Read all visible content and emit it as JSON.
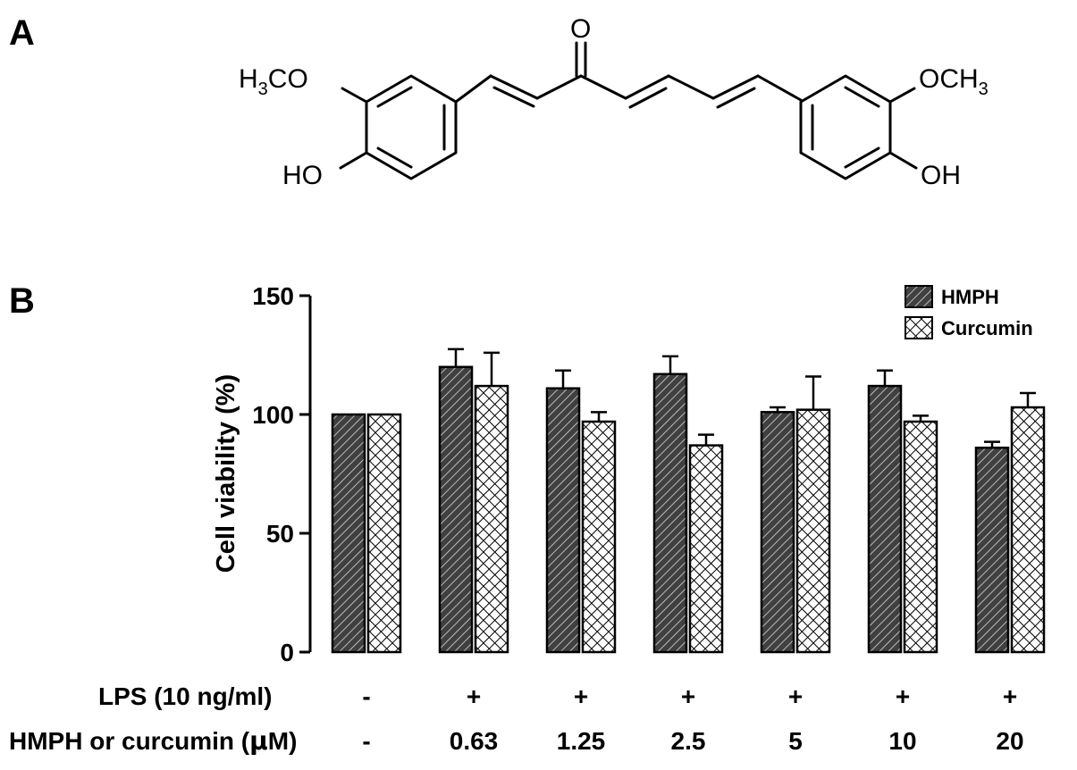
{
  "panel_a": {
    "label": "A",
    "structure": {
      "left_methoxy": [
        "H",
        "3",
        "CO"
      ],
      "left_hydroxy": "HO",
      "carbonyl_oxygen": "O",
      "right_methoxy": [
        "OCH",
        "3"
      ],
      "right_hydroxy": "OH"
    }
  },
  "panel_b": {
    "label": "B",
    "lps_label": "LPS (10 ng/ml)",
    "lps_values": [
      "-",
      "+",
      "+",
      "+",
      "+",
      "+",
      "+"
    ],
    "dose_label_prefix": "HMPH or curcumin (",
    "dose_label_mu": "μ",
    "dose_label_suffix": "M)",
    "dose_values": [
      "-",
      "0.63",
      "1.25",
      "2.5",
      "5",
      "10",
      "20"
    ]
  },
  "colors": {
    "hmph_fill": "#404040",
    "curcumin_fill": "#ffffff",
    "stroke": "#000000"
  },
  "chart_data": {
    "type": "bar",
    "ylabel": "Cell viability (%)",
    "xlabel": "",
    "ylim": [
      0,
      150
    ],
    "yticks": [
      0,
      50,
      100,
      150
    ],
    "grid": false,
    "legend_position": "top-right",
    "categories": [
      "-",
      "0.63",
      "1.25",
      "2.5",
      "5",
      "10",
      "20"
    ],
    "series": [
      {
        "name": "HMPH",
        "pattern": "diagonal-hatch",
        "values": [
          100,
          120,
          111,
          117,
          101,
          112,
          86
        ],
        "errors": [
          0,
          7.5,
          7.5,
          7.5,
          2,
          6.5,
          2.5
        ]
      },
      {
        "name": "Curcumin",
        "pattern": "crosshatch",
        "values": [
          100,
          112,
          97,
          87,
          102,
          97,
          103
        ],
        "errors": [
          0,
          14,
          4,
          4.5,
          14,
          2.5,
          6
        ]
      }
    ]
  }
}
